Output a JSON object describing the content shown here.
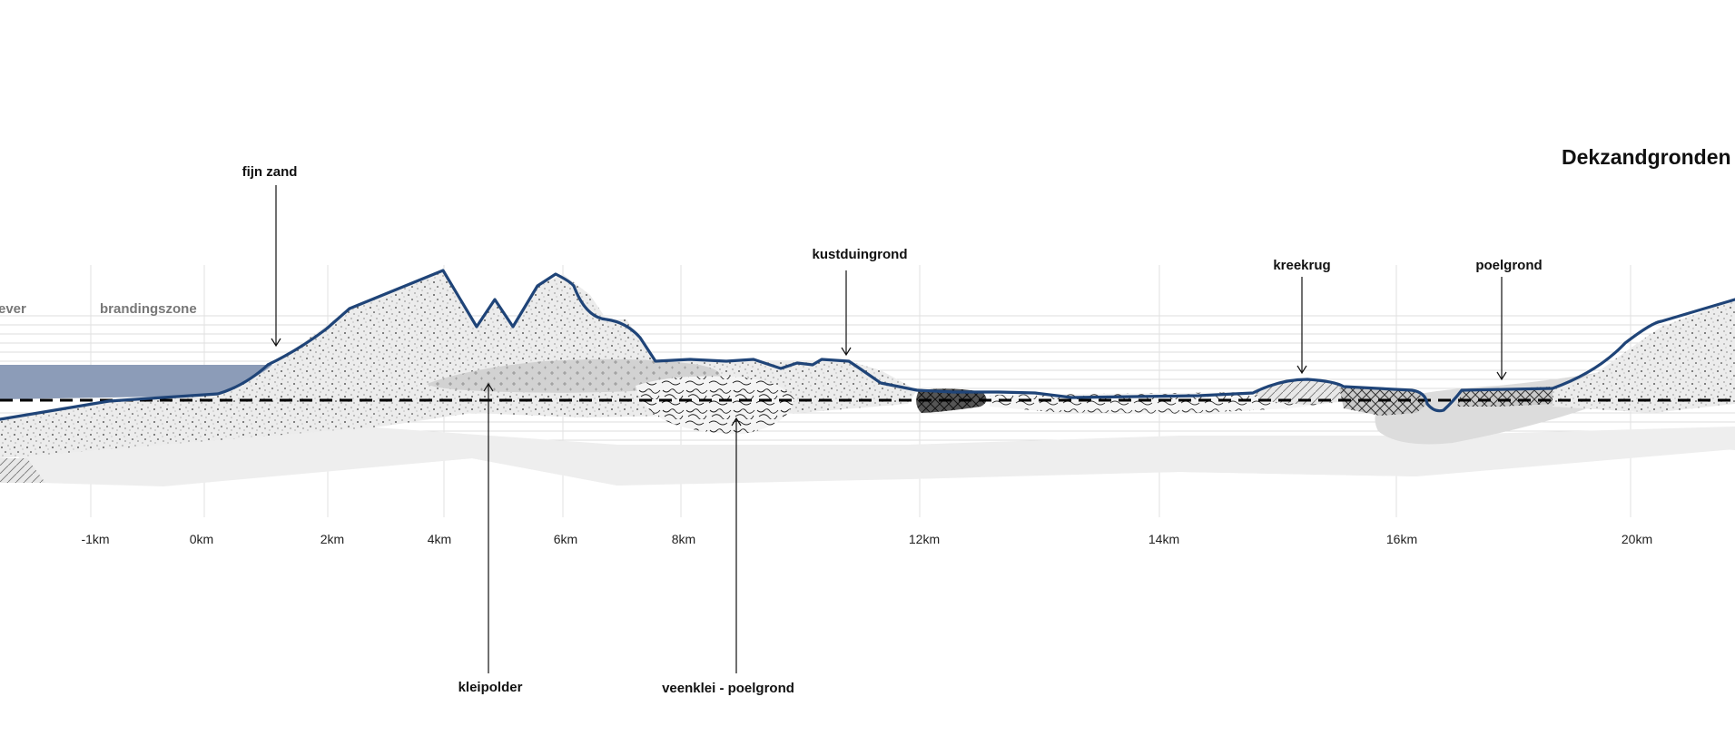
{
  "title": "Dekzandgronden",
  "zones": {
    "left": "ever",
    "surf": "brandingszone"
  },
  "labels": {
    "fijn_zand": "fijn zand",
    "kustduingrond": "kustduingrond",
    "kreekrug": "kreekrug",
    "poelgrond": "poelgrond",
    "kleipolder": "kleipolder",
    "veenklei": "veenklei - poelgrond"
  },
  "ticks": [
    "-1km",
    "0km",
    "2km",
    "4km",
    "6km",
    "8km",
    "12km",
    "14km",
    "16km",
    "20km"
  ],
  "colors": {
    "surface_line": "#1f4478",
    "sea": "#8c9cb8",
    "reference_line": "#000000"
  }
}
